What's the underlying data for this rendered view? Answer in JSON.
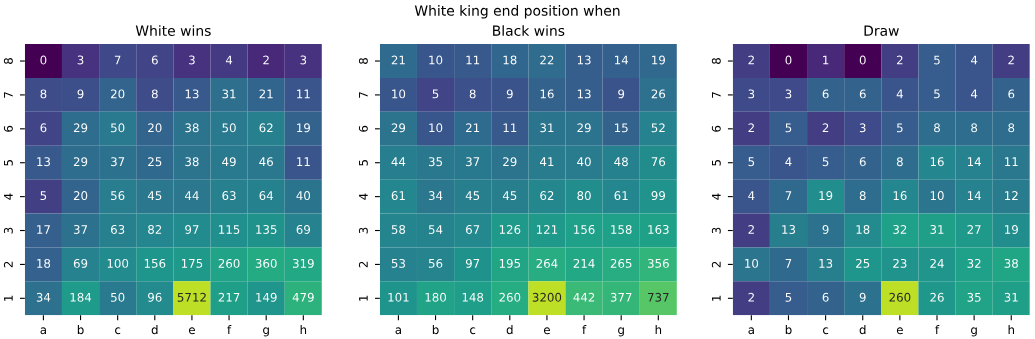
{
  "chart_data": [
    {
      "type": "heatmap",
      "title": "White wins",
      "annotations": [
        "White king end position when"
      ],
      "data_labels": true,
      "categories": [
        "a",
        "b",
        "c",
        "d",
        "e",
        "f",
        "g",
        "h"
      ],
      "y_categories": [
        "8",
        "7",
        "6",
        "5",
        "4",
        "3",
        "2",
        "1"
      ],
      "cells": [
        [
          0,
          3,
          7,
          6,
          3,
          4,
          2,
          3
        ],
        [
          8,
          9,
          20,
          8,
          13,
          31,
          21,
          11
        ],
        [
          6,
          29,
          50,
          20,
          38,
          50,
          62,
          19
        ],
        [
          13,
          29,
          37,
          25,
          38,
          49,
          46,
          11
        ],
        [
          5,
          20,
          56,
          45,
          44,
          63,
          64,
          40
        ],
        [
          17,
          37,
          63,
          82,
          97,
          115,
          135,
          69
        ],
        [
          18,
          69,
          100,
          156,
          175,
          260,
          360,
          319
        ],
        [
          34,
          184,
          50,
          96,
          5712,
          217,
          149,
          479
        ]
      ]
    },
    {
      "type": "heatmap",
      "title": "Black wins",
      "data_labels": true,
      "categories": [
        "a",
        "b",
        "c",
        "d",
        "e",
        "f",
        "g",
        "h"
      ],
      "y_categories": [
        "8",
        "7",
        "6",
        "5",
        "4",
        "3",
        "2",
        "1"
      ],
      "cells": [
        [
          21,
          10,
          11,
          18,
          22,
          13,
          14,
          19
        ],
        [
          10,
          5,
          8,
          9,
          16,
          13,
          9,
          26
        ],
        [
          29,
          10,
          21,
          11,
          31,
          29,
          15,
          52
        ],
        [
          44,
          35,
          37,
          29,
          41,
          40,
          48,
          76
        ],
        [
          61,
          34,
          45,
          45,
          62,
          80,
          61,
          99
        ],
        [
          58,
          54,
          67,
          126,
          121,
          156,
          158,
          163
        ],
        [
          53,
          56,
          97,
          195,
          264,
          214,
          265,
          356
        ],
        [
          101,
          180,
          148,
          260,
          3200,
          442,
          377,
          737
        ]
      ]
    },
    {
      "type": "heatmap",
      "title": "Draw",
      "data_labels": true,
      "categories": [
        "a",
        "b",
        "c",
        "d",
        "e",
        "f",
        "g",
        "h"
      ],
      "y_categories": [
        "8",
        "7",
        "6",
        "5",
        "4",
        "3",
        "2",
        "1"
      ],
      "cells": [
        [
          2,
          0,
          1,
          0,
          2,
          5,
          4,
          2
        ],
        [
          3,
          3,
          6,
          6,
          4,
          5,
          4,
          6
        ],
        [
          2,
          5,
          2,
          3,
          5,
          8,
          8,
          8
        ],
        [
          5,
          4,
          5,
          6,
          8,
          16,
          14,
          11
        ],
        [
          4,
          7,
          19,
          8,
          16,
          10,
          14,
          12
        ],
        [
          2,
          13,
          9,
          18,
          32,
          31,
          27,
          19
        ],
        [
          10,
          7,
          13,
          25,
          23,
          24,
          32,
          38
        ],
        [
          2,
          5,
          6,
          9,
          260,
          26,
          35,
          31
        ]
      ]
    }
  ]
}
